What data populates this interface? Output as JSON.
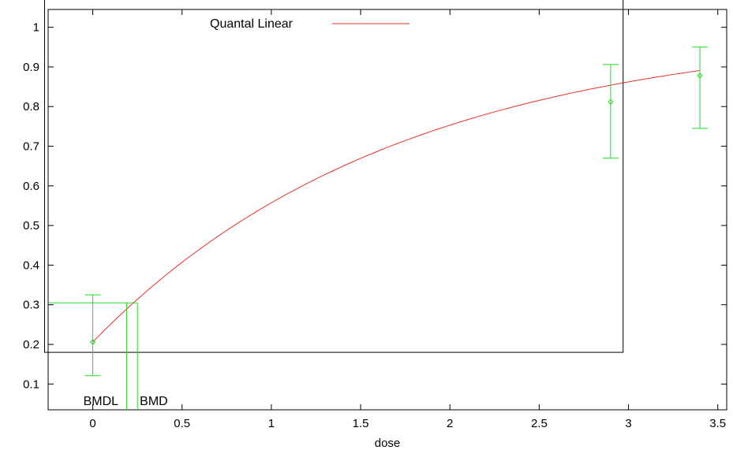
{
  "chart_data": {
    "type": "line",
    "title": "",
    "xlabel": "dose",
    "ylabel": "",
    "xlim": [
      -0.25,
      3.55
    ],
    "ylim": [
      0.035,
      1.045
    ],
    "x_ticks": [
      0,
      0.5,
      1,
      1.5,
      2,
      2.5,
      3,
      3.5
    ],
    "x_tick_labels": [
      "0",
      "0.5",
      "1",
      "1.5",
      "2",
      "2.5",
      "3",
      "3.5"
    ],
    "y_ticks": [
      0.1,
      0.2,
      0.3,
      0.4,
      0.5,
      0.6,
      0.7,
      0.8,
      0.9,
      1
    ],
    "y_tick_labels": [
      "0.1",
      "0.2",
      "0.3",
      "0.4",
      "0.5",
      "0.6",
      "0.7",
      "0.8",
      "0.9",
      "1"
    ],
    "grid": false,
    "legend_placement": "top",
    "series": [
      {
        "name": "Quantal Linear",
        "color": "#e8312a",
        "model": {
          "background": 0.206,
          "slope": 0.584
        },
        "x_range": [
          0,
          3.4
        ]
      }
    ],
    "observations": {
      "color": "#22dd22",
      "points": [
        {
          "x": 0,
          "y": 0.206,
          "lower": 0.121,
          "upper": 0.325
        },
        {
          "x": 2.9,
          "y": 0.812,
          "lower": 0.67,
          "upper": 0.906
        },
        {
          "x": 3.4,
          "y": 0.878,
          "lower": 0.745,
          "upper": 0.95
        }
      ]
    },
    "benchmark": {
      "color": "#22dd22",
      "response_level": 0.305,
      "bmdl": 0.19,
      "bmd": 0.25,
      "bmdl_label": "BMDL",
      "bmd_label": "BMD"
    },
    "overlay_box": {
      "x0": -0.27,
      "x1": 2.97,
      "y0": 0.18,
      "y1": 1.085
    }
  }
}
